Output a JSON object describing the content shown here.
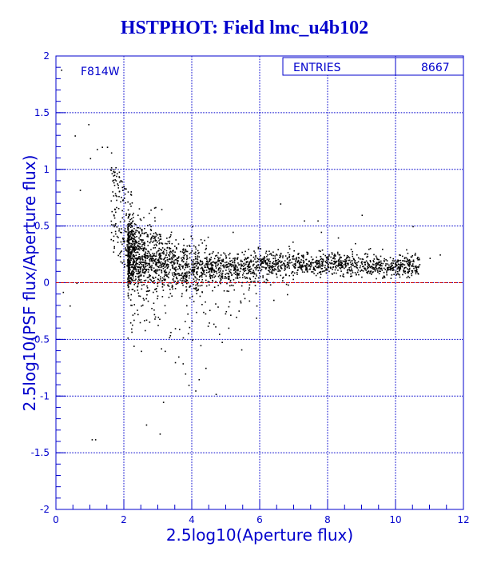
{
  "title": "HSTPHOT: Field lmc_u4b102",
  "stats": {
    "label": "ENTRIES",
    "value": "8667"
  },
  "filter_label": "F814W",
  "colors": {
    "axis": "#0000cc",
    "grid": "#0000cc",
    "points": "#000000",
    "zero_line": "#cc0000",
    "title": "#0000cc"
  },
  "chart_data": {
    "type": "scatter",
    "title": "HSTPHOT: Field lmc_u4b102",
    "xlabel": "2.5log10(Aperture flux)",
    "ylabel": "2.5log10(PSF flux/Aperture flux)",
    "xlim": [
      0,
      12
    ],
    "ylim": [
      -2,
      2
    ],
    "xticks": [
      "0",
      "2",
      "4",
      "6",
      "8",
      "10",
      "12"
    ],
    "yticks": [
      "-2",
      "-1.5",
      "-1",
      "-0.5",
      "0",
      "0.5",
      "1",
      "1.5",
      "2"
    ],
    "grid": true,
    "reference_line_y": 0,
    "entries": 8667,
    "points_x": [
      0.15,
      0.55,
      0.7,
      0.95,
      1.0,
      1.2,
      1.35,
      1.5,
      1.62,
      1.75,
      1.85,
      1.9,
      1.95,
      2.0,
      1.88,
      2.05,
      1.7,
      2.1,
      2.2,
      2.3,
      2.4,
      2.6,
      2.8,
      3.0,
      3.2,
      3.4,
      3.6,
      3.8,
      4.0,
      4.3,
      4.6,
      5.0,
      5.5,
      6.0,
      6.5,
      7.0,
      7.5,
      8.0,
      8.5,
      9.0,
      9.5,
      10.0,
      10.4,
      11.0,
      11.3,
      2.2,
      2.5,
      3.0,
      3.5,
      4.0,
      4.5,
      5.0,
      3.2,
      3.5,
      3.8,
      4.2,
      4.4,
      3.9,
      4.1,
      3.6,
      4.8,
      5.3,
      5.9,
      6.4,
      6.8,
      7.3,
      7.8,
      8.3,
      8.8,
      9.2,
      9.6,
      10.1,
      2.7,
      3.3,
      3.7,
      4.6,
      5.6,
      6.2,
      2.4,
      2.9,
      4.0,
      5.2,
      3.1,
      2.35,
      2.6,
      3.0,
      3.4,
      3.8,
      0.4,
      1.05,
      2.5,
      2.65,
      3.15,
      4.7,
      6.6,
      7.7,
      9.0,
      10.5,
      1.15,
      0.2,
      0.6,
      3.05,
      4.25,
      2.0
    ],
    "points_y": [
      1.88,
      1.3,
      0.82,
      1.4,
      1.1,
      1.18,
      1.2,
      1.2,
      1.15,
      1.02,
      0.98,
      0.9,
      0.82,
      0.75,
      0.45,
      0.6,
      0.5,
      0.52,
      0.4,
      0.35,
      0.3,
      0.25,
      0.22,
      0.2,
      0.18,
      0.16,
      0.15,
      0.14,
      0.14,
      0.13,
      0.13,
      0.14,
      0.15,
      0.16,
      0.17,
      0.17,
      0.17,
      0.17,
      0.17,
      0.17,
      0.16,
      0.16,
      0.2,
      0.22,
      0.25,
      -0.1,
      -0.2,
      -0.3,
      -0.4,
      -0.5,
      -0.35,
      -0.25,
      -0.6,
      -0.7,
      -0.8,
      -0.85,
      -0.75,
      -0.9,
      -0.95,
      -0.65,
      -0.45,
      -0.3,
      -0.2,
      -0.15,
      -0.1,
      0.55,
      0.45,
      0.4,
      0.35,
      0.3,
      0.3,
      0.25,
      0.1,
      0.05,
      0.0,
      0.02,
      0.05,
      0.08,
      0.6,
      0.55,
      0.5,
      0.45,
      0.65,
      0.3,
      0.35,
      0.4,
      0.35,
      0.3,
      -0.2,
      -1.38,
      -0.6,
      -1.25,
      -1.05,
      -0.98,
      0.7,
      0.55,
      0.6,
      0.5,
      -1.38,
      -0.08,
      0.0,
      -1.33,
      -0.55,
      0.55
    ],
    "density_band": {
      "note": "dense band",
      "x": [
        2.1,
        3.0,
        4.0,
        5.0,
        6.0,
        7.0,
        8.0,
        9.0,
        10.0
      ],
      "y_center": [
        0.28,
        0.2,
        0.14,
        0.14,
        0.16,
        0.17,
        0.17,
        0.16,
        0.15
      ]
    }
  }
}
